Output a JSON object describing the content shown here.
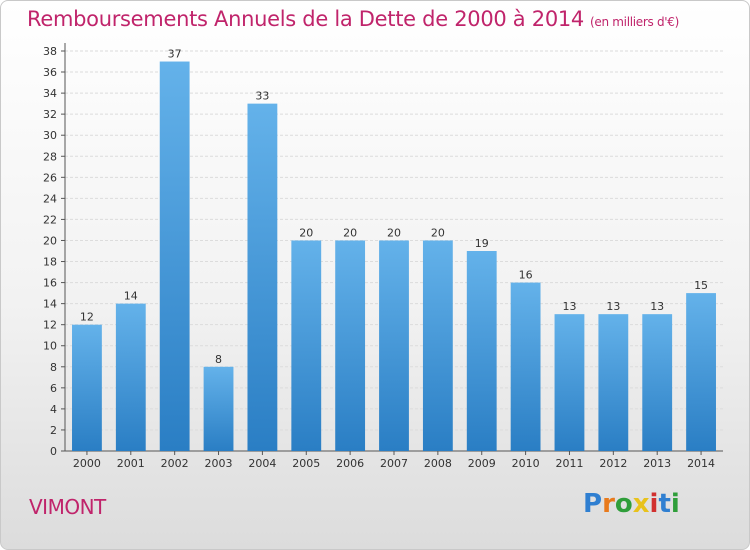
{
  "title": "Remboursements Annuels de la Dette de 2000 à 2014",
  "subtitle": "(en milliers d'€)",
  "commune": "VIMONT",
  "logo": {
    "letters": [
      "P",
      "r",
      "o",
      "x",
      "i",
      "t",
      "i"
    ],
    "colors": [
      "#2f7fd1",
      "#e87a1c",
      "#2f9e3a",
      "#e8c21c",
      "#d1302f",
      "#2f7fd1",
      "#2f9e3a"
    ]
  },
  "colors": {
    "bar_light": "#64b2ea",
    "bar_dark": "#2a7ec4",
    "title": "#c0246b"
  },
  "chart_data": {
    "type": "bar",
    "categories": [
      "2000",
      "2001",
      "2002",
      "2003",
      "2004",
      "2005",
      "2006",
      "2007",
      "2008",
      "2009",
      "2010",
      "2011",
      "2012",
      "2013",
      "2014"
    ],
    "values": [
      12,
      14,
      37,
      8,
      33,
      20,
      20,
      20,
      20,
      19,
      16,
      13,
      13,
      13,
      15
    ],
    "ylim": [
      0,
      38
    ],
    "yticks": [
      0,
      2,
      4,
      6,
      8,
      10,
      12,
      14,
      16,
      18,
      20,
      22,
      24,
      26,
      28,
      30,
      32,
      34,
      36,
      38
    ],
    "grid": true
  }
}
